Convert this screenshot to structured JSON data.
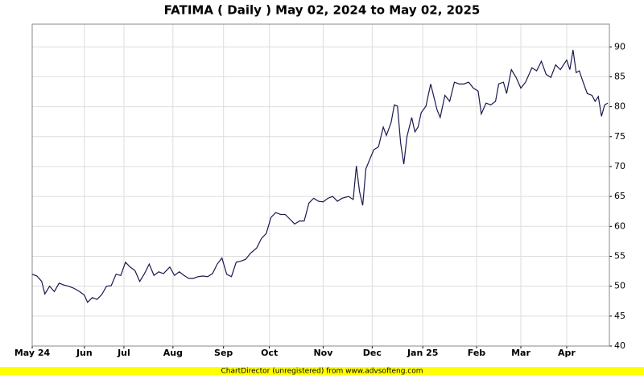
{
  "chart_data": {
    "type": "line",
    "title": "FATIMA ( Daily ) May 02, 2024 to May 02, 2025",
    "footer": "ChartDirector (unregistered) from www.advsofteng.com",
    "grid": true,
    "y_axis_side": "right",
    "xlim": [
      0,
      365
    ],
    "ylim": [
      40,
      93.8
    ],
    "yticks": [
      40,
      45,
      50,
      55,
      60,
      65,
      70,
      75,
      80,
      85,
      90
    ],
    "xticks": [
      {
        "value": 0,
        "label": "May 24"
      },
      {
        "value": 33,
        "label": "Jun"
      },
      {
        "value": 58,
        "label": "Jul"
      },
      {
        "value": 89,
        "label": "Aug"
      },
      {
        "value": 121,
        "label": "Sep"
      },
      {
        "value": 150,
        "label": "Oct"
      },
      {
        "value": 184,
        "label": "Nov"
      },
      {
        "value": 215,
        "label": "Dec"
      },
      {
        "value": 247,
        "label": "Jan 25"
      },
      {
        "value": 281,
        "label": "Feb"
      },
      {
        "value": 309,
        "label": "Mar"
      },
      {
        "value": 338,
        "label": "Apr"
      }
    ],
    "x": [
      0,
      3,
      6,
      8,
      11,
      14,
      17,
      20,
      23,
      26,
      30,
      33,
      35,
      38,
      41,
      44,
      47,
      50,
      53,
      56,
      59,
      62,
      65,
      68,
      71,
      74,
      77,
      80,
      83,
      87,
      90,
      93,
      96,
      99,
      102,
      105,
      108,
      111,
      114,
      117,
      120,
      123,
      126,
      129,
      132,
      135,
      138,
      142,
      145,
      148,
      151,
      154,
      157,
      160,
      163,
      166,
      169,
      172,
      175,
      178,
      181,
      184,
      187,
      190,
      193,
      196,
      200,
      203,
      205,
      207,
      209,
      211,
      213,
      216,
      219,
      222,
      224,
      227,
      229,
      231,
      233,
      235,
      237,
      240,
      242,
      244,
      246,
      249,
      252,
      256,
      258,
      261,
      264,
      267,
      270,
      273,
      276,
      279,
      282,
      284,
      287,
      290,
      293,
      295,
      298,
      300,
      303,
      306,
      309,
      312,
      316,
      319,
      322,
      325,
      328,
      331,
      334,
      336,
      338,
      340,
      342,
      344,
      346,
      348,
      351,
      354,
      356,
      358,
      360,
      362,
      364
    ],
    "series": [
      {
        "name": "FATIMA",
        "color": "#1a1a4e",
        "values": [
          52.0,
          51.7,
          50.8,
          48.7,
          50.0,
          49.1,
          50.5,
          50.2,
          50.0,
          49.7,
          49.1,
          48.5,
          47.3,
          48.1,
          47.8,
          48.6,
          50.0,
          50.1,
          52.0,
          51.8,
          54.0,
          53.2,
          52.6,
          50.8,
          52.1,
          53.7,
          51.8,
          52.4,
          52.1,
          53.2,
          51.8,
          52.4,
          51.8,
          51.3,
          51.3,
          51.6,
          51.7,
          51.6,
          52.1,
          53.7,
          54.7,
          52.0,
          51.6,
          54.0,
          54.2,
          54.5,
          55.5,
          56.4,
          58.0,
          58.8,
          61.5,
          62.3,
          62.0,
          62.0,
          61.2,
          60.4,
          60.9,
          60.9,
          63.9,
          64.7,
          64.2,
          64.1,
          64.7,
          65.0,
          64.2,
          64.7,
          65.0,
          64.5,
          70.1,
          65.8,
          63.5,
          69.6,
          70.9,
          72.8,
          73.3,
          76.6,
          75.2,
          77.4,
          80.3,
          80.1,
          73.9,
          70.4,
          75.0,
          78.2,
          75.8,
          76.6,
          79.0,
          80.1,
          83.8,
          79.5,
          78.2,
          81.9,
          80.9,
          84.1,
          83.8,
          83.8,
          84.1,
          83.1,
          82.6,
          78.8,
          80.6,
          80.3,
          80.9,
          83.8,
          84.1,
          82.2,
          86.2,
          84.9,
          83.1,
          84.1,
          86.5,
          86.0,
          87.6,
          85.4,
          84.9,
          87.0,
          86.2,
          87.0,
          87.8,
          86.2,
          89.5,
          85.7,
          86.0,
          84.4,
          82.2,
          81.9,
          80.9,
          81.7,
          78.4,
          80.3,
          80.6
        ]
      }
    ]
  }
}
